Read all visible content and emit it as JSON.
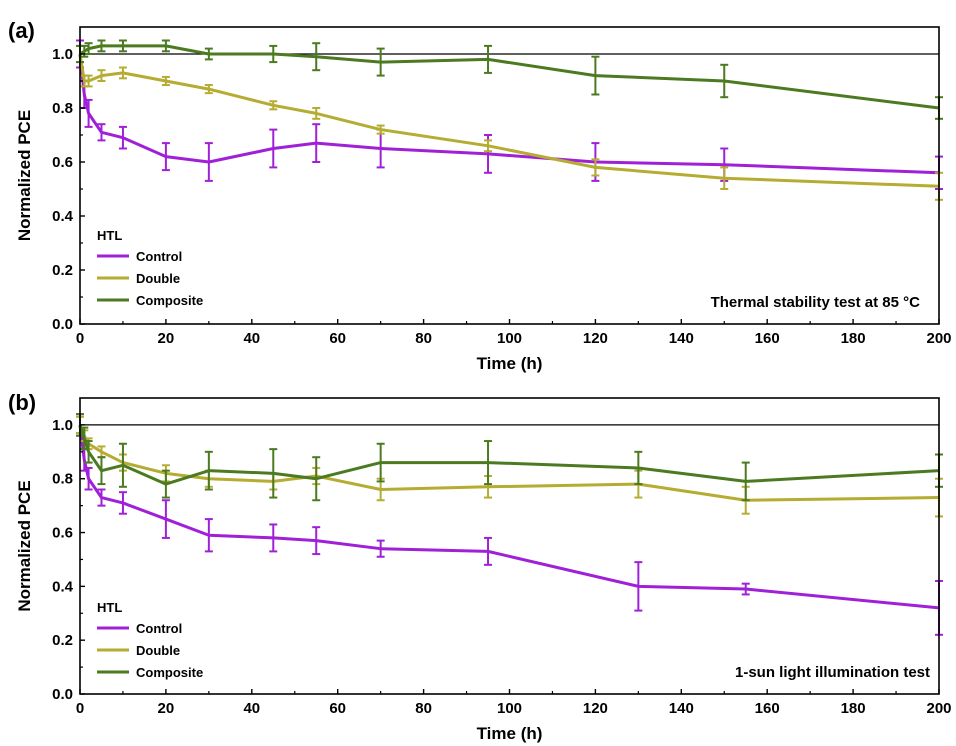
{
  "chart_data": [
    {
      "type": "line",
      "panel_label": "(a)",
      "xlabel": "Time (h)",
      "ylabel": "Normalized PCE",
      "xlim": [
        0,
        200
      ],
      "ylim": [
        0.0,
        1.1
      ],
      "xticks": [
        "0",
        "20",
        "40",
        "60",
        "80",
        "100",
        "120",
        "140",
        "160",
        "180",
        "200"
      ],
      "yticks": [
        "0.0",
        "0.2",
        "0.4",
        "0.6",
        "0.8",
        "1.0"
      ],
      "reference_line": 1.0,
      "grid": false,
      "legend_title": "HTL",
      "legend_placement": "bottom-left",
      "annotation": "Thermal stability test at 85 °C",
      "series": [
        {
          "name": "Control",
          "color": "#a020d8",
          "x": [
            0,
            1,
            2,
            5,
            10,
            20,
            30,
            45,
            55,
            70,
            95,
            120,
            150,
            200
          ],
          "y": [
            1.0,
            0.85,
            0.78,
            0.71,
            0.69,
            0.62,
            0.6,
            0.65,
            0.67,
            0.65,
            0.63,
            0.6,
            0.59,
            0.56
          ],
          "err": [
            0.05,
            0.05,
            0.05,
            0.03,
            0.04,
            0.05,
            0.07,
            0.07,
            0.07,
            0.07,
            0.07,
            0.07,
            0.06,
            0.06
          ]
        },
        {
          "name": "Double",
          "color": "#b5ac32",
          "x": [
            0,
            1,
            2,
            5,
            10,
            20,
            30,
            45,
            55,
            70,
            95,
            120,
            150,
            200
          ],
          "y": [
            1.0,
            0.9,
            0.9,
            0.92,
            0.93,
            0.9,
            0.87,
            0.81,
            0.78,
            0.72,
            0.66,
            0.58,
            0.54,
            0.51
          ],
          "err": [
            0.03,
            0.02,
            0.02,
            0.02,
            0.02,
            0.015,
            0.015,
            0.015,
            0.02,
            0.015,
            0.02,
            0.03,
            0.04,
            0.05
          ]
        },
        {
          "name": "Composite",
          "color": "#4b7a20",
          "x": [
            0,
            1,
            2,
            5,
            10,
            20,
            30,
            45,
            55,
            70,
            95,
            120,
            150,
            200
          ],
          "y": [
            1.0,
            1.01,
            1.02,
            1.03,
            1.03,
            1.03,
            1.0,
            1.0,
            0.99,
            0.97,
            0.98,
            0.92,
            0.9,
            0.8
          ],
          "err": [
            0.03,
            0.02,
            0.02,
            0.02,
            0.02,
            0.02,
            0.02,
            0.03,
            0.05,
            0.05,
            0.05,
            0.07,
            0.06,
            0.04
          ]
        }
      ]
    },
    {
      "type": "line",
      "panel_label": "(b)",
      "xlabel": "Time (h)",
      "ylabel": "Normalized PCE",
      "xlim": [
        0,
        200
      ],
      "ylim": [
        0.0,
        1.1
      ],
      "xticks": [
        "0",
        "20",
        "40",
        "60",
        "80",
        "100",
        "120",
        "140",
        "160",
        "180",
        "200"
      ],
      "yticks": [
        "0.0",
        "0.2",
        "0.4",
        "0.6",
        "0.8",
        "1.0"
      ],
      "reference_line": 1.0,
      "grid": false,
      "legend_title": "HTL",
      "legend_placement": "bottom-left",
      "annotation": "1-sun light illumination test",
      "series": [
        {
          "name": "Control",
          "color": "#a020d8",
          "x": [
            0,
            1,
            2,
            5,
            10,
            20,
            30,
            45,
            55,
            70,
            95,
            130,
            155,
            200
          ],
          "y": [
            1.0,
            0.87,
            0.8,
            0.73,
            0.71,
            0.65,
            0.59,
            0.58,
            0.57,
            0.54,
            0.53,
            0.4,
            0.39,
            0.32
          ],
          "err": [
            0.04,
            0.04,
            0.04,
            0.03,
            0.04,
            0.07,
            0.06,
            0.05,
            0.05,
            0.03,
            0.05,
            0.09,
            0.02,
            0.1
          ]
        },
        {
          "name": "Double",
          "color": "#b5ac32",
          "x": [
            0,
            1,
            2,
            5,
            10,
            20,
            30,
            45,
            55,
            70,
            95,
            130,
            155,
            200
          ],
          "y": [
            1.0,
            0.96,
            0.93,
            0.9,
            0.86,
            0.82,
            0.8,
            0.79,
            0.81,
            0.76,
            0.77,
            0.78,
            0.72,
            0.73
          ],
          "err": [
            0.03,
            0.02,
            0.02,
            0.02,
            0.03,
            0.03,
            0.03,
            0.03,
            0.03,
            0.04,
            0.04,
            0.05,
            0.05,
            0.07
          ]
        },
        {
          "name": "Composite",
          "color": "#4b7a20",
          "x": [
            0,
            1,
            2,
            5,
            10,
            20,
            30,
            45,
            55,
            70,
            95,
            130,
            155,
            200
          ],
          "y": [
            1.0,
            0.95,
            0.9,
            0.83,
            0.85,
            0.78,
            0.83,
            0.82,
            0.8,
            0.86,
            0.86,
            0.84,
            0.79,
            0.83
          ],
          "err": [
            0.04,
            0.04,
            0.04,
            0.05,
            0.08,
            0.05,
            0.07,
            0.09,
            0.08,
            0.07,
            0.08,
            0.06,
            0.07,
            0.06
          ]
        }
      ]
    }
  ]
}
